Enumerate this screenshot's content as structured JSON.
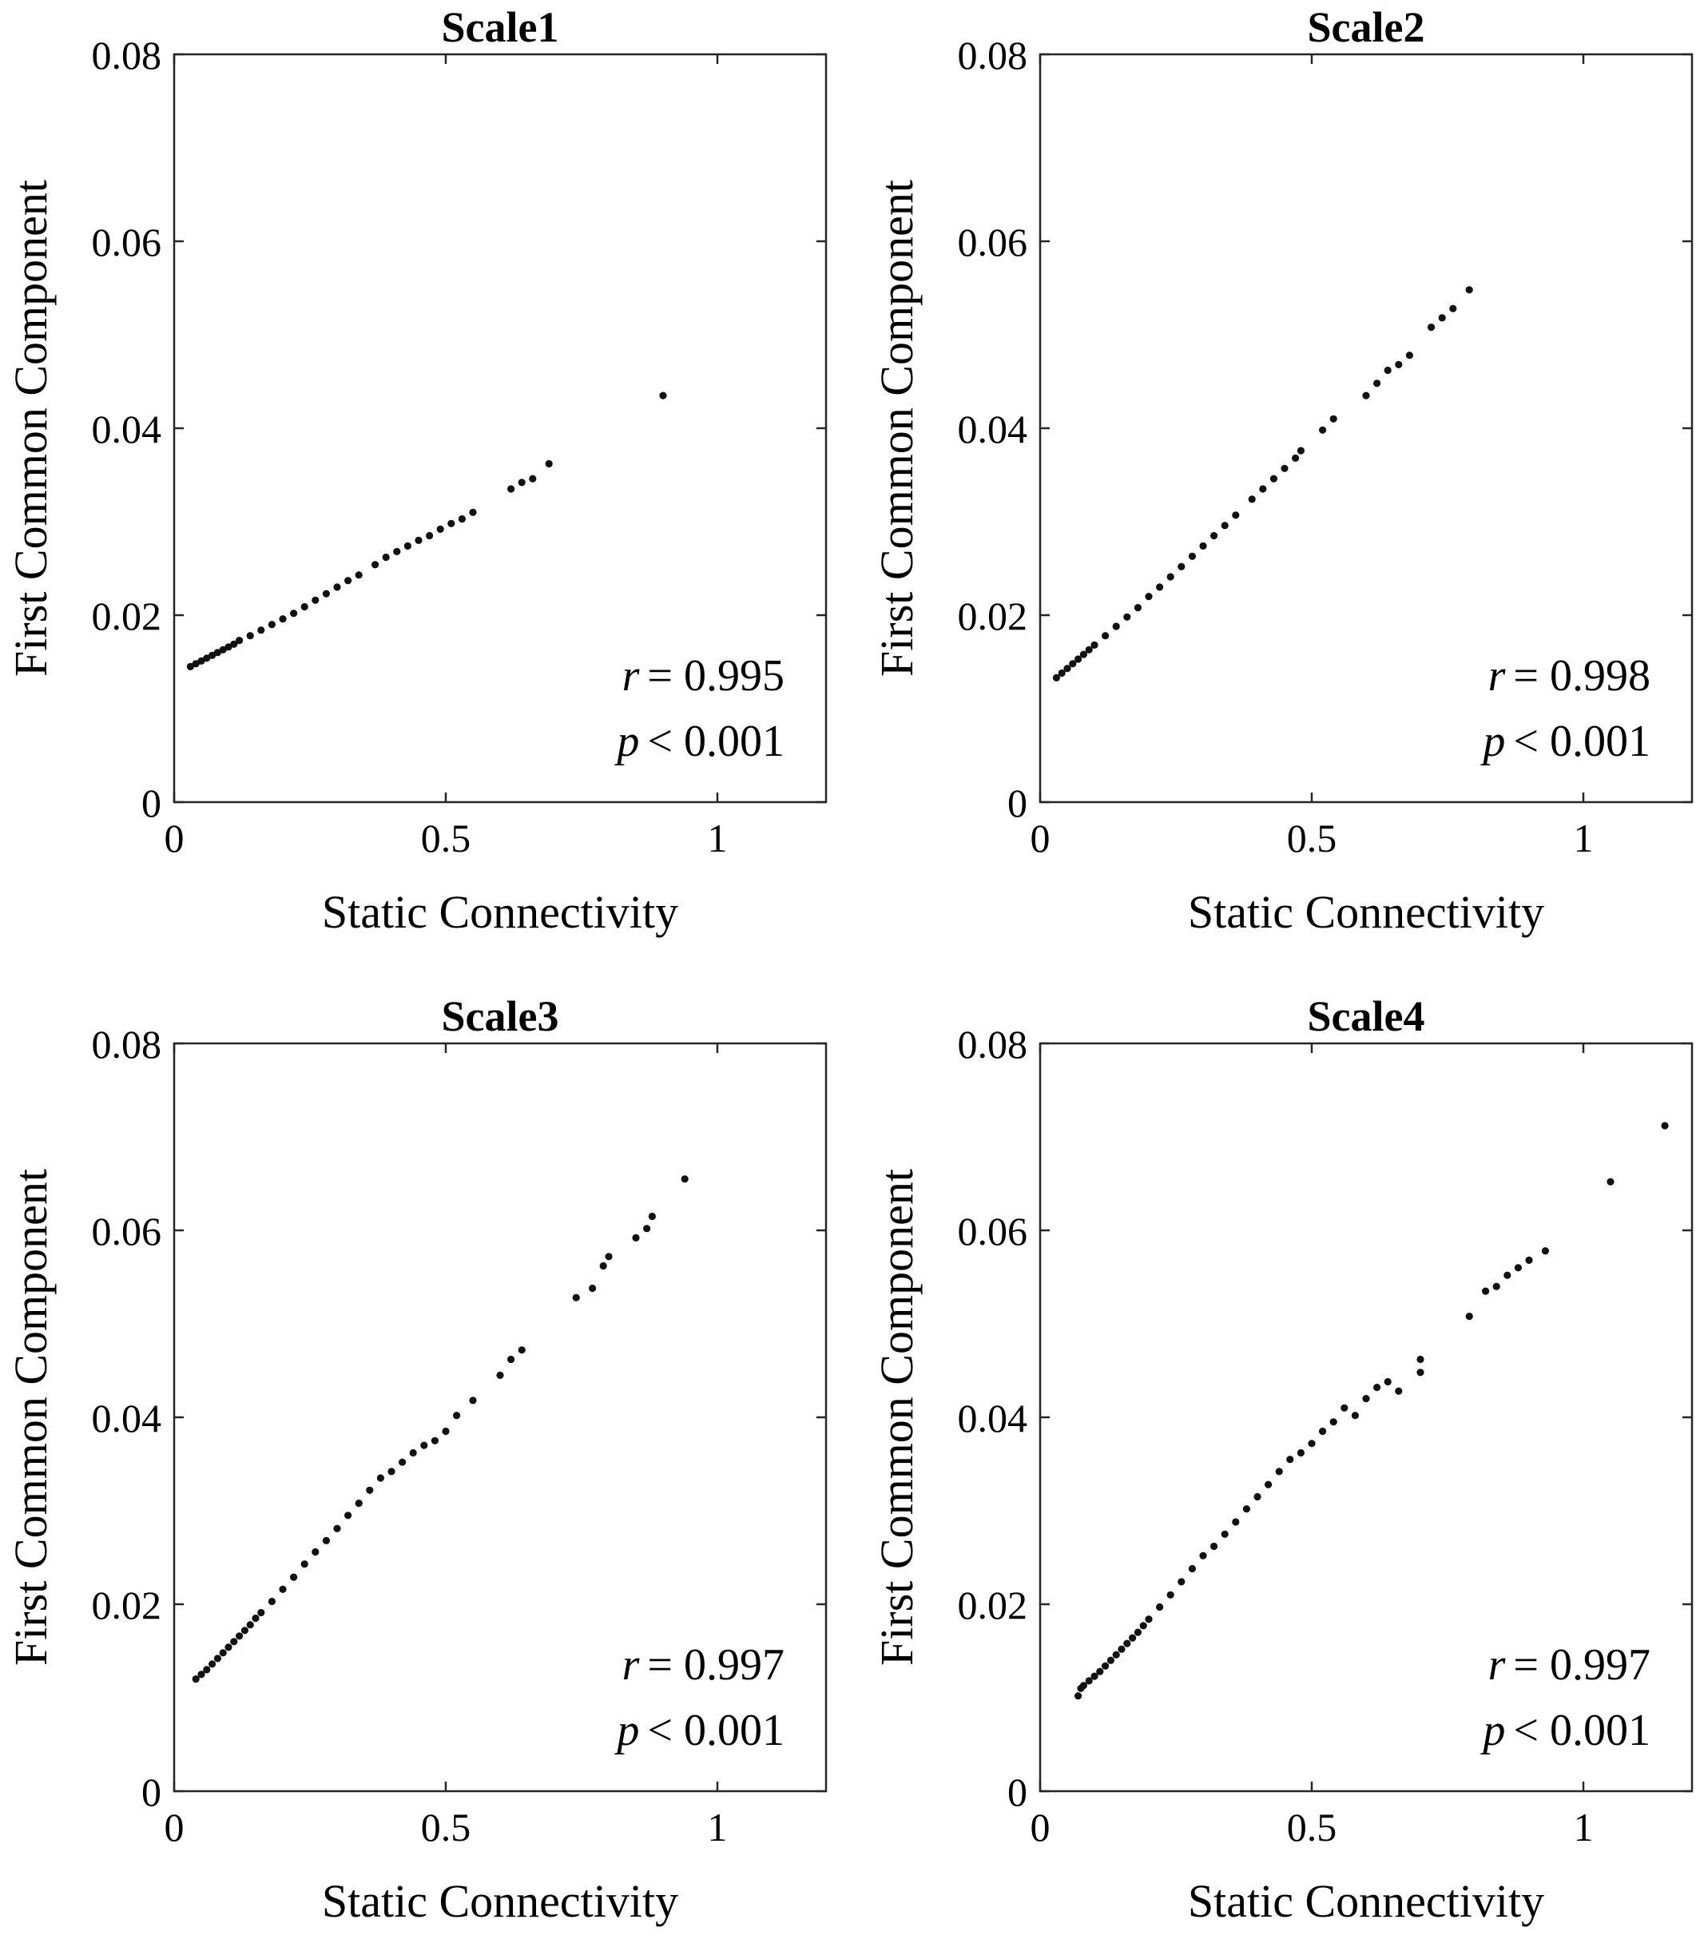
{
  "figure": {
    "background": "#ffffff",
    "marker_color": "#111111"
  },
  "chart_data": [
    {
      "type": "scatter",
      "title": "Scale1",
      "xlabel": "Static Connectivity",
      "ylabel": "First Common Component",
      "xlim": [
        0,
        1.2
      ],
      "ylim": [
        0,
        0.08
      ],
      "xticks": [
        0,
        0.5,
        1
      ],
      "xtick_labels": [
        "0",
        "0.5",
        "1"
      ],
      "yticks": [
        0,
        0.02,
        0.04,
        0.06,
        0.08
      ],
      "ytick_labels": [
        "0",
        "0.02",
        "0.04",
        "0.06",
        "0.08"
      ],
      "grid": false,
      "annotation": {
        "r_symbol": "r",
        "r_text": "= 0.995",
        "p_symbol": "p",
        "p_text": "< 0.001"
      },
      "series": [
        {
          "points": [
            [
              0.03,
              0.0145
            ],
            [
              0.04,
              0.0148
            ],
            [
              0.05,
              0.0151
            ],
            [
              0.06,
              0.0154
            ],
            [
              0.07,
              0.0157
            ],
            [
              0.08,
              0.016
            ],
            [
              0.09,
              0.0163
            ],
            [
              0.1,
              0.0166
            ],
            [
              0.11,
              0.0169
            ],
            [
              0.12,
              0.0173
            ],
            [
              0.14,
              0.0178
            ],
            [
              0.16,
              0.0184
            ],
            [
              0.18,
              0.019
            ],
            [
              0.2,
              0.0196
            ],
            [
              0.22,
              0.0202
            ],
            [
              0.24,
              0.0209
            ],
            [
              0.26,
              0.0216
            ],
            [
              0.28,
              0.0223
            ],
            [
              0.3,
              0.023
            ],
            [
              0.32,
              0.0237
            ],
            [
              0.34,
              0.0243
            ],
            [
              0.37,
              0.0254
            ],
            [
              0.39,
              0.0262
            ],
            [
              0.41,
              0.0268
            ],
            [
              0.43,
              0.0274
            ],
            [
              0.45,
              0.028
            ],
            [
              0.47,
              0.0285
            ],
            [
              0.49,
              0.0292
            ],
            [
              0.51,
              0.0298
            ],
            [
              0.53,
              0.0303
            ],
            [
              0.55,
              0.031
            ],
            [
              0.62,
              0.0335
            ],
            [
              0.64,
              0.0342
            ],
            [
              0.66,
              0.0346
            ],
            [
              0.69,
              0.0362
            ],
            [
              0.9,
              0.0435
            ]
          ]
        }
      ]
    },
    {
      "type": "scatter",
      "title": "Scale2",
      "xlabel": "Static Connectivity",
      "ylabel": "First Common Component",
      "xlim": [
        0,
        1.2
      ],
      "ylim": [
        0,
        0.08
      ],
      "xticks": [
        0,
        0.5,
        1
      ],
      "xtick_labels": [
        "0",
        "0.5",
        "1"
      ],
      "yticks": [
        0,
        0.02,
        0.04,
        0.06,
        0.08
      ],
      "ytick_labels": [
        "0",
        "0.02",
        "0.04",
        "0.06",
        "0.08"
      ],
      "grid": false,
      "annotation": {
        "r_symbol": "r",
        "r_text": "= 0.998",
        "p_symbol": "p",
        "p_text": "< 0.001"
      },
      "series": [
        {
          "points": [
            [
              0.03,
              0.0133
            ],
            [
              0.04,
              0.0138
            ],
            [
              0.05,
              0.0143
            ],
            [
              0.06,
              0.0148
            ],
            [
              0.07,
              0.0153
            ],
            [
              0.08,
              0.0158
            ],
            [
              0.09,
              0.0163
            ],
            [
              0.1,
              0.0168
            ],
            [
              0.12,
              0.0178
            ],
            [
              0.14,
              0.0188
            ],
            [
              0.16,
              0.0198
            ],
            [
              0.18,
              0.0208
            ],
            [
              0.2,
              0.022
            ],
            [
              0.22,
              0.023
            ],
            [
              0.24,
              0.0241
            ],
            [
              0.26,
              0.0252
            ],
            [
              0.28,
              0.0263
            ],
            [
              0.3,
              0.0274
            ],
            [
              0.32,
              0.0285
            ],
            [
              0.34,
              0.0296
            ],
            [
              0.36,
              0.0307
            ],
            [
              0.39,
              0.0324
            ],
            [
              0.41,
              0.0335
            ],
            [
              0.43,
              0.0346
            ],
            [
              0.45,
              0.0357
            ],
            [
              0.47,
              0.0368
            ],
            [
              0.48,
              0.0376
            ],
            [
              0.52,
              0.0398
            ],
            [
              0.54,
              0.041
            ],
            [
              0.6,
              0.0435
            ],
            [
              0.62,
              0.0448
            ],
            [
              0.64,
              0.0462
            ],
            [
              0.66,
              0.0468
            ],
            [
              0.68,
              0.0478
            ],
            [
              0.72,
              0.0508
            ],
            [
              0.74,
              0.0518
            ],
            [
              0.76,
              0.0528
            ],
            [
              0.79,
              0.0548
            ]
          ]
        }
      ]
    },
    {
      "type": "scatter",
      "title": "Scale3",
      "xlabel": "Static Connectivity",
      "ylabel": "First Common Component",
      "xlim": [
        0,
        1.2
      ],
      "ylim": [
        0,
        0.08
      ],
      "xticks": [
        0,
        0.5,
        1
      ],
      "xtick_labels": [
        "0",
        "0.5",
        "1"
      ],
      "yticks": [
        0,
        0.02,
        0.04,
        0.06,
        0.08
      ],
      "ytick_labels": [
        "0",
        "0.02",
        "0.04",
        "0.06",
        "0.08"
      ],
      "grid": false,
      "annotation": {
        "r_symbol": "r",
        "r_text": "= 0.997",
        "p_symbol": "p",
        "p_text": "< 0.001"
      },
      "series": [
        {
          "points": [
            [
              0.04,
              0.012
            ],
            [
              0.05,
              0.0125
            ],
            [
              0.06,
              0.013
            ],
            [
              0.07,
              0.0136
            ],
            [
              0.08,
              0.0142
            ],
            [
              0.09,
              0.0148
            ],
            [
              0.1,
              0.0154
            ],
            [
              0.11,
              0.016
            ],
            [
              0.12,
              0.0166
            ],
            [
              0.13,
              0.0172
            ],
            [
              0.14,
              0.0178
            ],
            [
              0.15,
              0.0185
            ],
            [
              0.16,
              0.0191
            ],
            [
              0.18,
              0.0203
            ],
            [
              0.2,
              0.0216
            ],
            [
              0.22,
              0.0229
            ],
            [
              0.24,
              0.0243
            ],
            [
              0.26,
              0.0256
            ],
            [
              0.28,
              0.0268
            ],
            [
              0.3,
              0.0281
            ],
            [
              0.32,
              0.0295
            ],
            [
              0.34,
              0.0308
            ],
            [
              0.36,
              0.0322
            ],
            [
              0.38,
              0.0335
            ],
            [
              0.4,
              0.0342
            ],
            [
              0.42,
              0.0352
            ],
            [
              0.44,
              0.0362
            ],
            [
              0.46,
              0.037
            ],
            [
              0.48,
              0.0375
            ],
            [
              0.5,
              0.0385
            ],
            [
              0.52,
              0.0402
            ],
            [
              0.55,
              0.0418
            ],
            [
              0.6,
              0.0445
            ],
            [
              0.62,
              0.0462
            ],
            [
              0.64,
              0.0472
            ],
            [
              0.74,
              0.0528
            ],
            [
              0.77,
              0.0538
            ],
            [
              0.79,
              0.0562
            ],
            [
              0.8,
              0.0572
            ],
            [
              0.85,
              0.0592
            ],
            [
              0.87,
              0.0602
            ],
            [
              0.88,
              0.0615
            ],
            [
              0.94,
              0.0655
            ]
          ]
        }
      ]
    },
    {
      "type": "scatter",
      "title": "Scale4",
      "xlabel": "Static Connectivity",
      "ylabel": "First Common Component",
      "xlim": [
        0,
        1.2
      ],
      "ylim": [
        0,
        0.08
      ],
      "xticks": [
        0,
        0.5,
        1
      ],
      "xtick_labels": [
        "0",
        "0.5",
        "1"
      ],
      "yticks": [
        0,
        0.02,
        0.04,
        0.06,
        0.08
      ],
      "ytick_labels": [
        "0",
        "0.02",
        "0.04",
        "0.06",
        "0.08"
      ],
      "grid": false,
      "annotation": {
        "r_symbol": "r",
        "r_text": "= 0.997",
        "p_symbol": "p",
        "p_text": "< 0.001"
      },
      "series": [
        {
          "points": [
            [
              0.07,
              0.0102
            ],
            [
              0.075,
              0.011
            ],
            [
              0.08,
              0.0113
            ],
            [
              0.09,
              0.0118
            ],
            [
              0.1,
              0.0123
            ],
            [
              0.11,
              0.0128
            ],
            [
              0.12,
              0.0134
            ],
            [
              0.13,
              0.014
            ],
            [
              0.14,
              0.0146
            ],
            [
              0.15,
              0.0152
            ],
            [
              0.16,
              0.0158
            ],
            [
              0.17,
              0.0164
            ],
            [
              0.18,
              0.017
            ],
            [
              0.19,
              0.0177
            ],
            [
              0.2,
              0.0184
            ],
            [
              0.22,
              0.0197
            ],
            [
              0.24,
              0.021
            ],
            [
              0.26,
              0.0224
            ],
            [
              0.28,
              0.0238
            ],
            [
              0.3,
              0.0252
            ],
            [
              0.32,
              0.0262
            ],
            [
              0.34,
              0.0275
            ],
            [
              0.36,
              0.0288
            ],
            [
              0.38,
              0.0302
            ],
            [
              0.4,
              0.0315
            ],
            [
              0.42,
              0.0328
            ],
            [
              0.44,
              0.0342
            ],
            [
              0.46,
              0.0355
            ],
            [
              0.48,
              0.0362
            ],
            [
              0.5,
              0.0372
            ],
            [
              0.52,
              0.0385
            ],
            [
              0.54,
              0.0395
            ],
            [
              0.56,
              0.041
            ],
            [
              0.58,
              0.0402
            ],
            [
              0.6,
              0.042
            ],
            [
              0.62,
              0.0432
            ],
            [
              0.64,
              0.0438
            ],
            [
              0.66,
              0.0428
            ],
            [
              0.7,
              0.0448
            ],
            [
              0.7,
              0.0462
            ],
            [
              0.79,
              0.0508
            ],
            [
              0.82,
              0.0535
            ],
            [
              0.84,
              0.054
            ],
            [
              0.86,
              0.0552
            ],
            [
              0.88,
              0.056
            ],
            [
              0.9,
              0.0568
            ],
            [
              0.93,
              0.0578
            ],
            [
              1.05,
              0.0652
            ],
            [
              1.15,
              0.0712
            ]
          ]
        }
      ]
    }
  ]
}
